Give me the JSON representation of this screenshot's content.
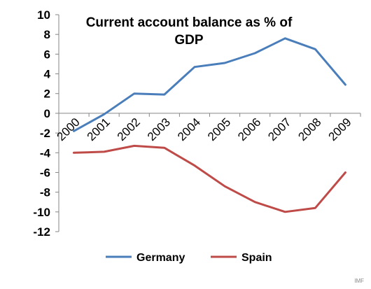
{
  "chart_data": {
    "type": "line",
    "title_line1": "Current account balance as % of",
    "title_line2": "GDP",
    "x": [
      "2000",
      "2001",
      "2002",
      "2003",
      "2004",
      "2005",
      "2006",
      "2007",
      "2008",
      "2009"
    ],
    "ylim": [
      -12,
      10
    ],
    "yticks": [
      "10",
      "8",
      "6",
      "4",
      "2",
      "0",
      "-2",
      "-4",
      "-6",
      "-8",
      "-10",
      "-12"
    ],
    "grid": false,
    "legend_position": "bottom",
    "series": [
      {
        "name": "Germany",
        "color": "#4a7ebb",
        "values": [
          -1.8,
          -0.1,
          2.0,
          1.9,
          4.7,
          5.1,
          6.1,
          7.6,
          6.5,
          2.9
        ]
      },
      {
        "name": "Spain",
        "color": "#be4b48",
        "values": [
          -4.0,
          -3.9,
          -3.3,
          -3.5,
          -5.3,
          -7.4,
          -9.0,
          -10.0,
          -9.6,
          -6.0
        ]
      }
    ],
    "source": "IMF"
  }
}
